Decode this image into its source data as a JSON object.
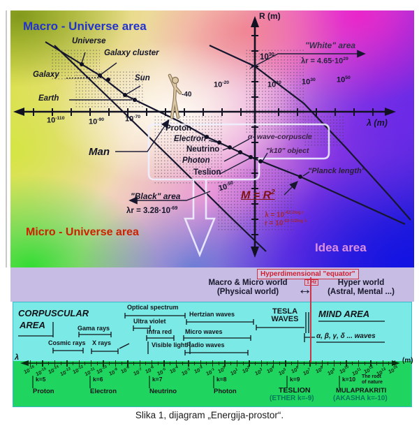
{
  "caption": "Slika 1, dijagram „Energija-prostor“.",
  "diagram": {
    "area_labels": {
      "macro": "Macro - Universe area",
      "micro": "Micro - Universe area",
      "idea": "Idea area",
      "white": "\"White\" area",
      "black": "\"Black\" area"
    },
    "axes": {
      "r": "R (m)",
      "lambda": "λ (m)"
    },
    "h_ticks": [
      {
        "b": "10",
        "e": "-110"
      },
      {
        "b": "10",
        "e": "-90"
      },
      {
        "b": "10",
        "e": "-70"
      },
      {
        "b": "",
        "e": "-40"
      },
      {
        "b": "10",
        "e": "-20"
      },
      {
        "b": "10",
        "e": "10"
      },
      {
        "b": "10",
        "e": "30"
      },
      {
        "b": "10",
        "e": "50"
      }
    ],
    "v_ticks": [
      {
        "b": "10",
        "e": "30"
      },
      {
        "b": "10",
        "e": "-50"
      }
    ],
    "objects": {
      "universe": "Universe",
      "galaxy_cluster": "Galaxy cluster",
      "galaxy": "Galaxy",
      "sun": "Sun",
      "earth": "Earth",
      "man": "Man"
    },
    "particles": {
      "proton": "Proton",
      "electron": "Electron",
      "neutrino": "Neutrino",
      "photon": "Photon",
      "teslion": "Teslion"
    },
    "annotations": {
      "wave_corpuscle": "α- wave-corpuscle",
      "k10_object": "\"k10\" object",
      "planck": "\"Planck length\"",
      "m_r2": {
        "base": "M = R",
        "exp": "2"
      },
      "white_formula": {
        "base": "λr = 4.65·10",
        "exp": "29"
      },
      "black_formula": {
        "base": "λr = 3.28·10",
        "exp": "-69"
      },
      "idea_f1": {
        "base": "λ = 10",
        "exp": "-42-2log r"
      },
      "idea_f2": {
        "base": "r = 10",
        "exp": "-22-1/2log λ"
      }
    }
  },
  "equator_band": {
    "title": "Hyperdimensional \"equator\"",
    "phys1": "Macro & Micro world",
    "phys2": "(Physical world)",
    "hz": "1 Hz",
    "arrow": "↔",
    "hyper1": "Hyper world",
    "hyper2": "(Astral, Mental ...)"
  },
  "spectrum": {
    "corpuscular1": "CORPUSCULAR",
    "corpuscular2": "AREA",
    "bands": [
      "Cosmic rays",
      "Gama rays",
      "X rays",
      "Optical spectrum",
      "Ultra violet",
      "Infra red",
      "Visible light",
      "Hertzian waves",
      "Micro waves",
      "Radio waves"
    ],
    "tesla1": "TESLA",
    "tesla2": "WAVES",
    "mind": "MIND AREA",
    "mind_waves": "α, β, γ, δ ... waves",
    "lambda": "λ",
    "unit": "(m)",
    "exponents": [
      "-16",
      "-15",
      "-14",
      "-13",
      "-12",
      "-11",
      "-10",
      "-9",
      "-8",
      "-7",
      "-6",
      "-5",
      "-4",
      "-3",
      "-2",
      "-1",
      "0",
      "1",
      "2",
      "3",
      "4",
      "5",
      "6",
      "7",
      "8",
      "9",
      "10",
      "11",
      "12",
      "13",
      "14"
    ],
    "k_entries": [
      {
        "k": "k=5",
        "name": "Proton"
      },
      {
        "k": "k=6",
        "name": "Electron"
      },
      {
        "k": "k=7",
        "name": "Neutrino"
      },
      {
        "k": "k=8",
        "name": "Photon"
      },
      {
        "k": "k=9",
        "name": "TESLION",
        "sub": "(ETHER k=-9)"
      },
      {
        "k": "k=10",
        "name": "MULAPRAKRITI",
        "sub": "(AKASHA k=-10)",
        "note1": "The root",
        "note2": "of nature"
      }
    ]
  },
  "colors": {
    "macro_label": "#2233cc",
    "micro_label": "#cc2200",
    "idea_label": "#db8fe0",
    "equator_red": "#cc2233",
    "ether_teal": "#007a58",
    "band_purple": "#c6bce4",
    "band_cyan": "#7be9e6",
    "band_green": "#1fd45f"
  }
}
